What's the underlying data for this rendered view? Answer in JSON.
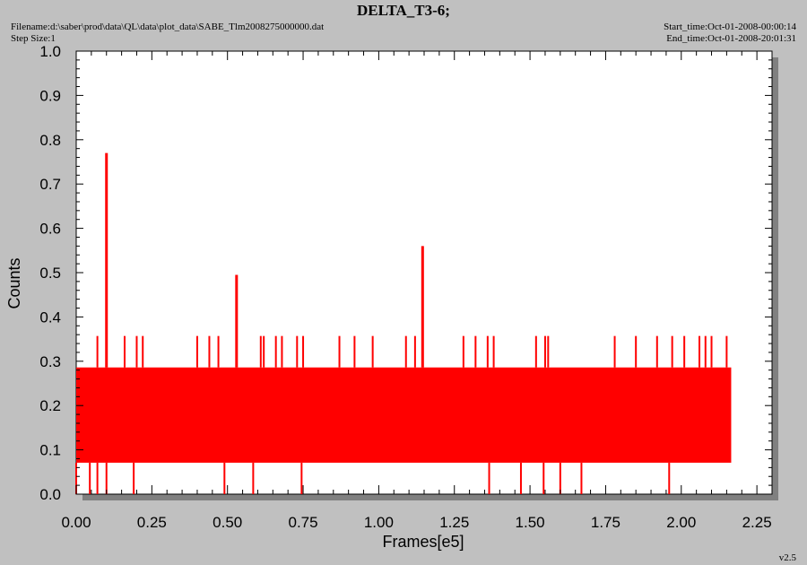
{
  "header": {
    "title": "DELTA_T3-6;",
    "filename_label": "Filename:",
    "filename": "d:\\saber\\prod\\data\\QL\\data\\plot_data\\SABE_Tlm2008275000000.dat",
    "step_label": "Step Size:",
    "step_size": "1",
    "start_label": "Start_time:",
    "start_time": "Oct-01-2008-00:00:14",
    "end_label": "End_time:",
    "end_time": "Oct-01-2008-20:01:31"
  },
  "version": "v2.5",
  "colors": {
    "series": "#ff0000",
    "plot_bg": "#ffffff",
    "page_bg": "#c0c0c0"
  },
  "chart_data": {
    "type": "line",
    "title": "DELTA_T3-6;",
    "xlabel": "Frames[e5]",
    "ylabel": "Counts",
    "xlim": [
      0,
      2.3
    ],
    "ylim": [
      0,
      1.0
    ],
    "x_ticks": [
      "0.00",
      "0.25",
      "0.50",
      "0.75",
      "1.00",
      "1.25",
      "1.50",
      "1.75",
      "2.00",
      "2.25"
    ],
    "y_ticks": [
      "0.0",
      "0.1",
      "0.2",
      "0.3",
      "0.4",
      "0.5",
      "0.6",
      "0.7",
      "0.8",
      "0.9",
      "1.0"
    ],
    "grid": false,
    "series": [
      {
        "color": "#ff0000",
        "x_range": [
          0,
          2.165
        ],
        "band_low": 0.143,
        "band_high": 0.286,
        "typical_min": 0.071,
        "typical_max": 0.286,
        "peaks": [
          {
            "x": 0.1,
            "y": 0.77
          },
          {
            "x": 0.53,
            "y": 0.495
          },
          {
            "x": 1.145,
            "y": 0.56
          }
        ],
        "high_excursions": [
          {
            "x": 0.07,
            "y": 0.357
          },
          {
            "x": 0.16,
            "y": 0.357
          },
          {
            "x": 0.2,
            "y": 0.357
          },
          {
            "x": 0.22,
            "y": 0.357
          },
          {
            "x": 0.4,
            "y": 0.357
          },
          {
            "x": 0.44,
            "y": 0.357
          },
          {
            "x": 0.47,
            "y": 0.357
          },
          {
            "x": 0.61,
            "y": 0.357
          },
          {
            "x": 0.62,
            "y": 0.357
          },
          {
            "x": 0.66,
            "y": 0.357
          },
          {
            "x": 0.68,
            "y": 0.357
          },
          {
            "x": 0.73,
            "y": 0.357
          },
          {
            "x": 0.75,
            "y": 0.357
          },
          {
            "x": 0.87,
            "y": 0.357
          },
          {
            "x": 0.92,
            "y": 0.357
          },
          {
            "x": 0.98,
            "y": 0.357
          },
          {
            "x": 1.09,
            "y": 0.357
          },
          {
            "x": 1.12,
            "y": 0.357
          },
          {
            "x": 1.28,
            "y": 0.357
          },
          {
            "x": 1.32,
            "y": 0.357
          },
          {
            "x": 1.36,
            "y": 0.357
          },
          {
            "x": 1.38,
            "y": 0.357
          },
          {
            "x": 1.52,
            "y": 0.357
          },
          {
            "x": 1.55,
            "y": 0.357
          },
          {
            "x": 1.56,
            "y": 0.357
          },
          {
            "x": 1.78,
            "y": 0.357
          },
          {
            "x": 1.85,
            "y": 0.357
          },
          {
            "x": 1.92,
            "y": 0.357
          },
          {
            "x": 1.97,
            "y": 0.357
          },
          {
            "x": 2.01,
            "y": 0.357
          },
          {
            "x": 2.06,
            "y": 0.357
          },
          {
            "x": 2.08,
            "y": 0.357
          },
          {
            "x": 2.1,
            "y": 0.357
          },
          {
            "x": 2.15,
            "y": 0.357
          }
        ],
        "low_excursions": [
          {
            "x": 0.0,
            "y": 0.0
          },
          {
            "x": 0.045,
            "y": 0.0
          },
          {
            "x": 0.07,
            "y": 0.0
          },
          {
            "x": 0.1,
            "y": 0.0
          },
          {
            "x": 0.19,
            "y": 0.0
          },
          {
            "x": 0.49,
            "y": 0.0
          },
          {
            "x": 0.585,
            "y": 0.0
          },
          {
            "x": 0.745,
            "y": 0.0
          },
          {
            "x": 1.365,
            "y": 0.0
          },
          {
            "x": 1.47,
            "y": 0.0
          },
          {
            "x": 1.545,
            "y": 0.0
          },
          {
            "x": 1.6,
            "y": 0.0
          },
          {
            "x": 1.67,
            "y": 0.0
          },
          {
            "x": 1.96,
            "y": 0.0
          }
        ]
      }
    ]
  }
}
